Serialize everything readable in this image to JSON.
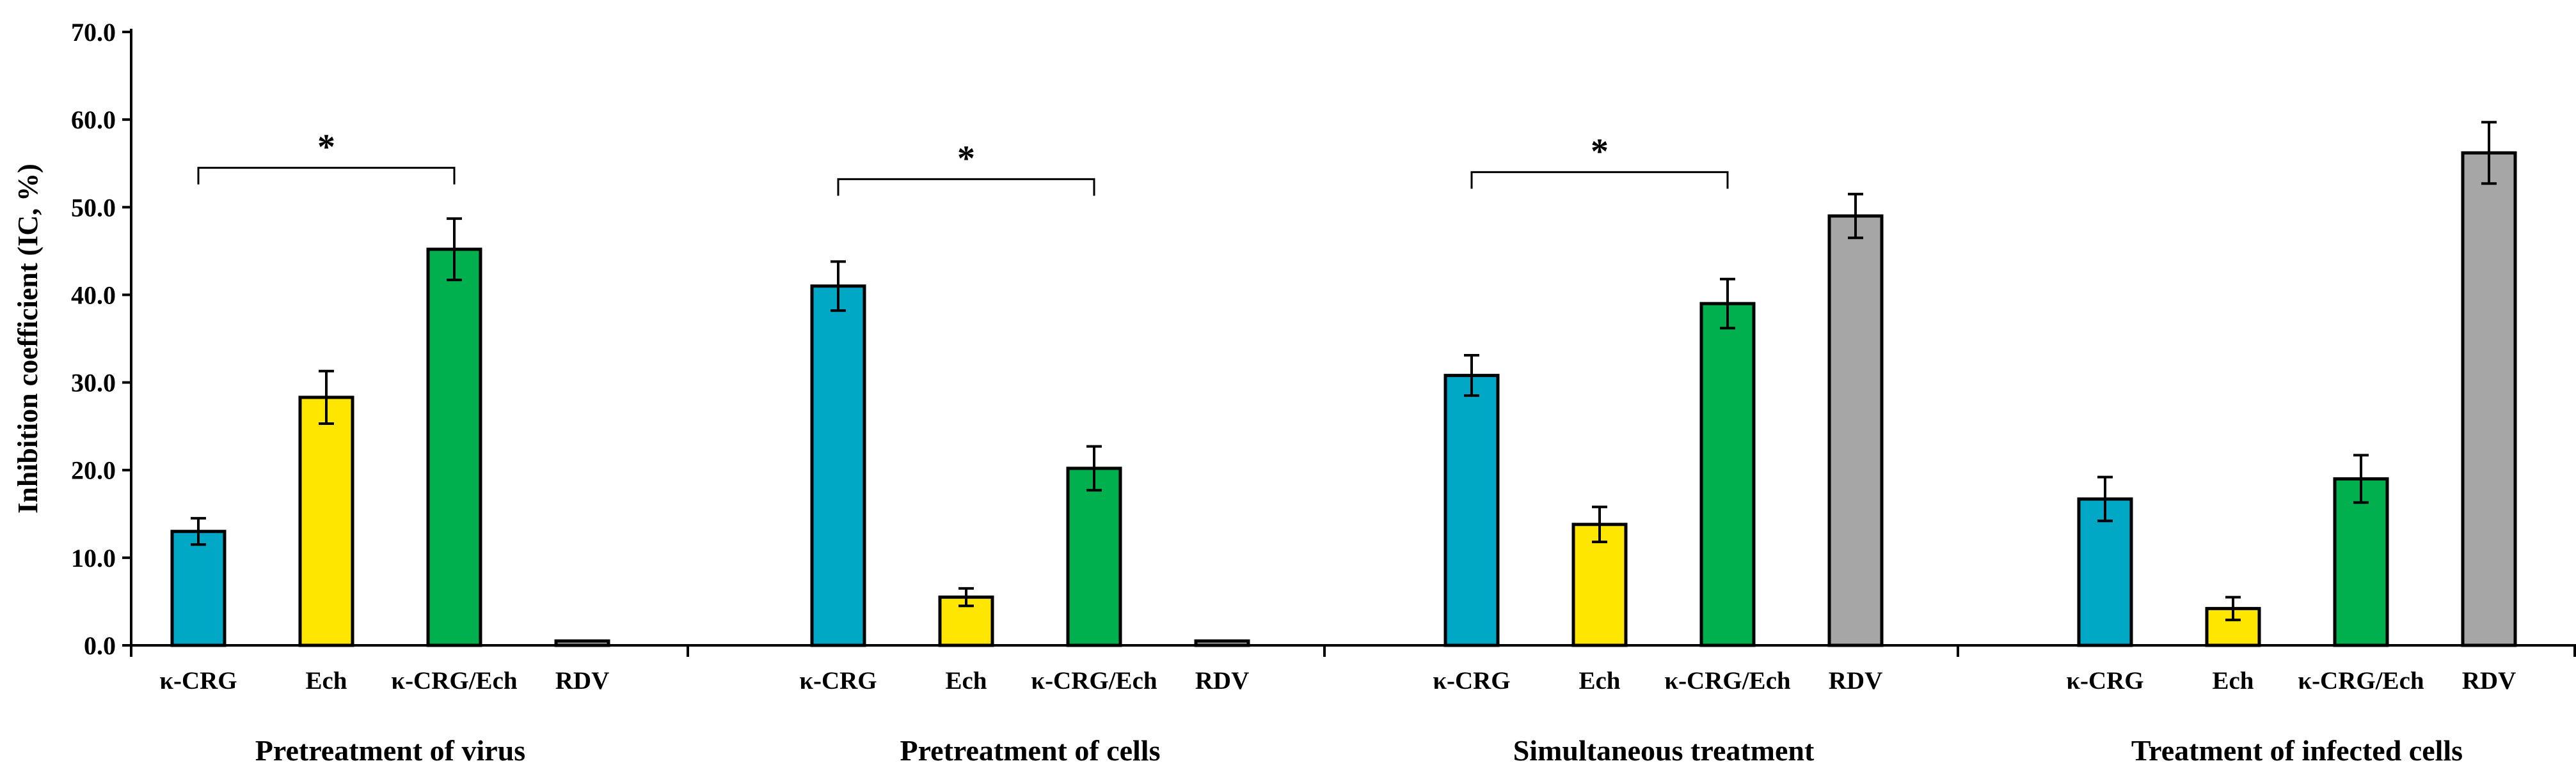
{
  "chart_data": {
    "type": "bar",
    "title": "",
    "xlabel": "",
    "ylabel": "Inhibition coefficient (IC, %)",
    "ylim": [
      0,
      70
    ],
    "yticks": [
      "0.0",
      "10.0",
      "20.0",
      "30.0",
      "40.0",
      "50.0",
      "60.0",
      "70.0"
    ],
    "grid": false,
    "legend": "none",
    "colors": {
      "κ-CRG": "#00a8c6",
      "Ech": "#ffe600",
      "κ-CRG/Ech": "#00b04f",
      "RDV": "#a6a6a6"
    },
    "groups": [
      {
        "label": "Pretreatment of virus",
        "bars": [
          {
            "category": "κ-CRG",
            "value": 13.0,
            "error": 1.5
          },
          {
            "category": "Ech",
            "value": 28.3,
            "error": 3.0
          },
          {
            "category": "κ-CRG/Ech",
            "value": 45.2,
            "error": 3.5
          },
          {
            "category": "RDV",
            "value": 0.5,
            "error": 0
          }
        ],
        "significance": {
          "from": "κ-CRG",
          "to": "κ-CRG/Ech",
          "level": 54.5,
          "label": "*"
        }
      },
      {
        "label": "Pretreatment of cells",
        "bars": [
          {
            "category": "κ-CRG",
            "value": 41.0,
            "error": 2.8
          },
          {
            "category": "Ech",
            "value": 5.5,
            "error": 1.0
          },
          {
            "category": "κ-CRG/Ech",
            "value": 20.2,
            "error": 2.5
          },
          {
            "category": "RDV",
            "value": 0.5,
            "error": 0
          }
        ],
        "significance": {
          "from": "κ-CRG",
          "to": "κ-CRG/Ech",
          "level": 53.2,
          "label": "*"
        }
      },
      {
        "label": "Simultaneous treatment",
        "bars": [
          {
            "category": "κ-CRG",
            "value": 30.8,
            "error": 2.3
          },
          {
            "category": "Ech",
            "value": 13.8,
            "error": 2.0
          },
          {
            "category": "κ-CRG/Ech",
            "value": 39.0,
            "error": 2.8
          },
          {
            "category": "RDV",
            "value": 49.0,
            "error": 2.5
          }
        ],
        "significance": {
          "from": "κ-CRG",
          "to": "κ-CRG/Ech",
          "level": 54.0,
          "label": "*"
        }
      },
      {
        "label": "Treatment of infected cells",
        "bars": [
          {
            "category": "κ-CRG",
            "value": 16.7,
            "error": 2.5
          },
          {
            "category": "Ech",
            "value": 4.2,
            "error": 1.3
          },
          {
            "category": "κ-CRG/Ech",
            "value": 19.0,
            "error": 2.7
          },
          {
            "category": "RDV",
            "value": 56.2,
            "error": 3.5
          }
        ],
        "significance": null
      }
    ]
  }
}
